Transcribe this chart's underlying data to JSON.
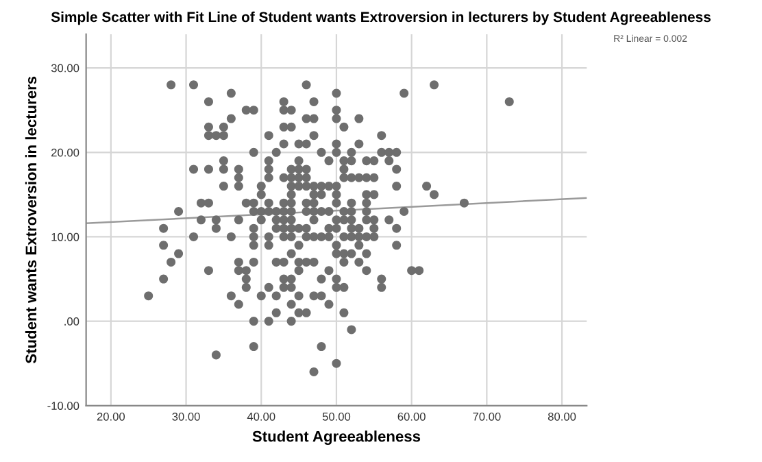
{
  "chart_data": {
    "type": "scatter",
    "title": "Simple Scatter with Fit Line of Student wants Extroversion in lecturers by Student Agreeableness",
    "xlabel": "Student Agreeableness",
    "ylabel": "Student wants Extroversion in lecturers",
    "annotations": [
      "R² Linear = 0.002"
    ],
    "xlim": [
      16.7,
      83.3
    ],
    "ylim": [
      -10,
      34
    ],
    "xticks": [
      {
        "value": 20,
        "label": "20.00"
      },
      {
        "value": 30,
        "label": "30.00"
      },
      {
        "value": 40,
        "label": "40.00"
      },
      {
        "value": 50,
        "label": "50.00"
      },
      {
        "value": 60,
        "label": "60.00"
      },
      {
        "value": 70,
        "label": "70.00"
      },
      {
        "value": 80,
        "label": "80.00"
      }
    ],
    "yticks": [
      {
        "value": -10,
        "label": "-10.00"
      },
      {
        "value": 0,
        "label": ".00"
      },
      {
        "value": 10,
        "label": "10.00"
      },
      {
        "value": 20,
        "label": "20.00"
      },
      {
        "value": 30,
        "label": "30.00"
      }
    ],
    "grid": true,
    "marker": "circle",
    "legend": false,
    "series": [
      {
        "color": "#6e6e6e",
        "x": [
          28,
          31,
          33,
          36,
          38,
          39,
          43,
          43,
          44,
          33,
          35,
          36,
          33,
          34,
          35,
          43,
          44,
          41,
          43,
          45,
          39,
          42,
          35,
          41,
          45,
          31,
          33,
          35,
          37,
          41,
          44,
          45,
          37,
          41,
          43,
          44,
          45,
          35,
          37,
          40,
          44,
          45,
          40,
          44,
          32,
          33,
          38,
          39,
          41,
          43,
          44,
          29,
          39,
          40,
          41,
          42,
          43,
          44,
          32,
          34,
          37,
          40,
          42,
          43,
          44,
          27,
          34,
          39,
          42,
          43,
          44,
          45,
          31,
          36,
          39,
          41,
          43,
          44,
          27,
          39,
          41,
          45,
          29,
          44,
          28,
          37,
          39,
          42,
          43,
          45,
          33,
          37,
          38,
          45,
          27,
          38,
          43,
          44,
          38,
          41,
          43,
          44,
          25,
          36,
          40,
          42,
          45,
          37,
          44,
          42,
          45,
          39,
          41,
          44,
          39,
          34,
          46,
          50,
          47,
          50,
          46,
          47,
          50,
          53,
          51,
          47,
          46,
          50,
          53,
          56,
          48,
          50,
          52,
          56,
          57,
          58,
          49,
          51,
          52,
          54,
          55,
          57,
          46,
          51,
          58,
          46,
          51,
          52,
          53,
          54,
          55,
          46,
          47,
          48,
          49,
          50,
          58,
          62,
          47,
          48,
          50,
          54,
          55,
          63,
          46,
          47,
          50,
          52,
          54,
          67,
          46,
          47,
          48,
          49,
          51,
          52,
          54,
          59,
          47,
          50,
          51,
          52,
          54,
          55,
          57,
          46,
          49,
          50,
          52,
          53,
          55,
          58,
          46,
          47,
          48,
          49,
          51,
          52,
          53,
          54,
          55,
          58,
          50,
          53,
          50,
          51,
          52,
          54,
          46,
          47,
          51,
          53,
          49,
          54,
          60,
          61,
          48,
          50,
          56,
          50,
          51,
          56,
          47,
          48,
          46,
          49,
          51,
          52,
          48,
          50,
          47,
          59,
          63,
          73
        ],
        "values": [
          28,
          28,
          26,
          27,
          25,
          25,
          26,
          25,
          25,
          23,
          23,
          24,
          22,
          22,
          22,
          23,
          23,
          22,
          21,
          21,
          20,
          20,
          19,
          19,
          19,
          18,
          18,
          18,
          18,
          18,
          18,
          18,
          17,
          17,
          17,
          17,
          17,
          16,
          16,
          16,
          16,
          16,
          15,
          15,
          14,
          14,
          14,
          14,
          14,
          14,
          14,
          13,
          13,
          13,
          13,
          13,
          13,
          13,
          12,
          12,
          12,
          12,
          12,
          12,
          12,
          11,
          11,
          11,
          11,
          11,
          11,
          11,
          10,
          10,
          10,
          10,
          10,
          10,
          9,
          9,
          9,
          9,
          8,
          8,
          7,
          7,
          7,
          7,
          7,
          7,
          6,
          6,
          6,
          6,
          5,
          5,
          5,
          5,
          4,
          4,
          4,
          4,
          3,
          3,
          3,
          3,
          3,
          2,
          2,
          1,
          1,
          0,
          0,
          0,
          -3,
          -4,
          28,
          27,
          26,
          25,
          24,
          24,
          24,
          24,
          23,
          22,
          21,
          21,
          21,
          22,
          20,
          20,
          20,
          20,
          20,
          20,
          19,
          19,
          19,
          19,
          19,
          19,
          18,
          18,
          18,
          17,
          17,
          17,
          17,
          17,
          17,
          16,
          16,
          16,
          16,
          16,
          16,
          16,
          15,
          15,
          15,
          15,
          15,
          15,
          14,
          14,
          14,
          14,
          14,
          14,
          13,
          13,
          13,
          13,
          13,
          13,
          13,
          13,
          12,
          12,
          12,
          12,
          12,
          12,
          12,
          11,
          11,
          11,
          11,
          11,
          11,
          11,
          10,
          10,
          10,
          10,
          10,
          10,
          10,
          10,
          10,
          9,
          9,
          9,
          8,
          8,
          8,
          8,
          7,
          7,
          7,
          7,
          6,
          6,
          6,
          6,
          5,
          5,
          5,
          4,
          4,
          4,
          3,
          3,
          1,
          2,
          1,
          -1,
          -3,
          -5,
          -6,
          27,
          28,
          26
        ]
      },
      {
        "type": "line",
        "color": "#9a9a9a",
        "marker": "none",
        "x": [
          16.7,
          83.3
        ],
        "values": [
          11.6,
          14.6
        ]
      }
    ]
  }
}
